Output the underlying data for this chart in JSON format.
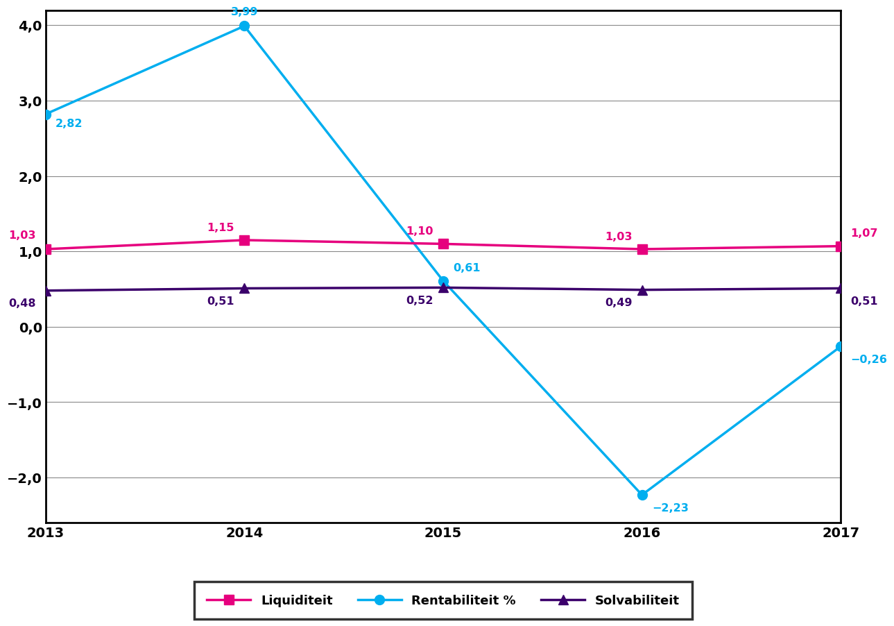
{
  "years": [
    2013,
    2014,
    2015,
    2016,
    2017
  ],
  "liquiditeit": [
    1.03,
    1.15,
    1.1,
    1.03,
    1.07
  ],
  "rentabiliteit": [
    2.82,
    3.99,
    0.61,
    -2.23,
    -0.26
  ],
  "solvabiliteit": [
    0.48,
    0.51,
    0.52,
    0.49,
    0.51
  ],
  "liquiditeit_color": "#e6007e",
  "rentabiliteit_color": "#00aeef",
  "solvabiliteit_color": "#3b006b",
  "ylim": [
    -2.6,
    4.2
  ],
  "yticks": [
    -2.0,
    -1.0,
    0.0,
    1.0,
    2.0,
    3.0,
    4.0
  ],
  "ytick_labels": [
    "−2,0",
    "−1,0",
    "0,0",
    "1,0",
    "2,0",
    "3,0",
    "4,0"
  ],
  "background_color": "#ffffff",
  "grid_color": "#888888",
  "legend_labels": [
    "Liquiditeit",
    "Rentabiliteit %",
    "Solvabiliteit"
  ],
  "liq_labels": [
    "1,03",
    "1,15",
    "1,10",
    "1,03",
    "1,07"
  ],
  "rent_labels": [
    "2,82",
    "3,99",
    "0,61",
    "−2,23",
    "−0,26"
  ],
  "solv_labels": [
    "0,48",
    "0,51",
    "0,52",
    "0,49",
    "0,51"
  ]
}
